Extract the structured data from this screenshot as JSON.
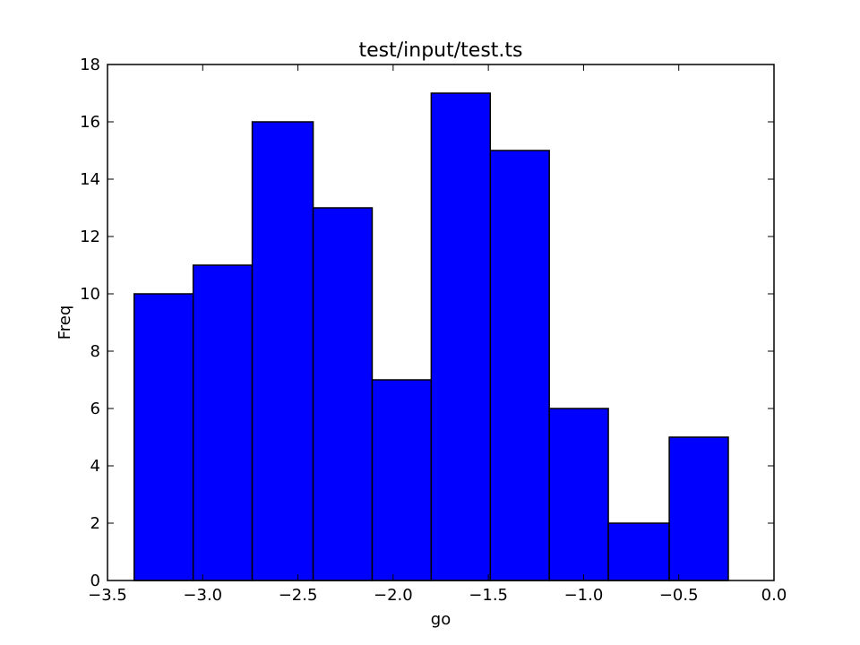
{
  "chart_data": {
    "type": "bar",
    "title": "test/input/test.ts",
    "xlabel": "go",
    "ylabel": "Freq",
    "xlim": [
      -3.5,
      0.0
    ],
    "ylim": [
      0,
      18
    ],
    "x_ticks": [
      -3.5,
      -3.0,
      -2.5,
      -2.0,
      -1.5,
      -1.0,
      -0.5,
      0.0
    ],
    "x_tick_labels": [
      "−3.5",
      "−3.0",
      "−2.5",
      "−2.0",
      "−1.5",
      "−1.0",
      "−0.5",
      "0.0"
    ],
    "y_ticks": [
      0,
      2,
      4,
      6,
      8,
      10,
      12,
      14,
      16,
      18
    ],
    "y_tick_labels": [
      "0",
      "2",
      "4",
      "6",
      "8",
      "10",
      "12",
      "14",
      "16",
      "18"
    ],
    "bins": [
      {
        "x0": -3.36,
        "x1": -3.05,
        "value": 10
      },
      {
        "x0": -3.05,
        "x1": -2.74,
        "value": 11
      },
      {
        "x0": -2.74,
        "x1": -2.42,
        "value": 16
      },
      {
        "x0": -2.42,
        "x1": -2.11,
        "value": 13
      },
      {
        "x0": -2.11,
        "x1": -1.8,
        "value": 7
      },
      {
        "x0": -1.8,
        "x1": -1.49,
        "value": 17
      },
      {
        "x0": -1.49,
        "x1": -1.18,
        "value": 15
      },
      {
        "x0": -1.18,
        "x1": -0.87,
        "value": 6
      },
      {
        "x0": -0.87,
        "x1": -0.55,
        "value": 2
      },
      {
        "x0": -0.55,
        "x1": -0.24,
        "value": 5
      }
    ],
    "bar_color": "#0000ff",
    "edge_color": "#000000",
    "grid": false
  }
}
